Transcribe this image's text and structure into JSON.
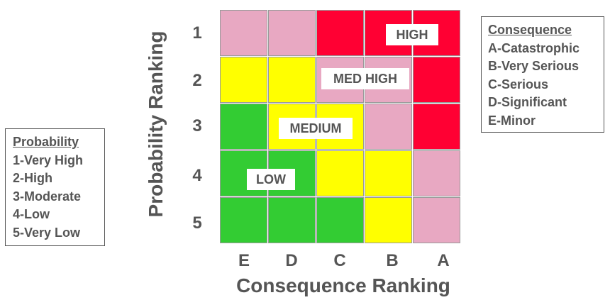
{
  "probability_legend": {
    "title": "Probability",
    "items": [
      "1-Very High",
      "2-High",
      "3-Moderate",
      "4-Low",
      "5-Very Low"
    ]
  },
  "consequence_legend": {
    "title": "Consequence",
    "items": [
      "A-Catastrophic",
      "B-Very Serious",
      "C-Serious",
      "D-Significant",
      "E-Minor"
    ]
  },
  "axes": {
    "y_label": "Probability Ranking",
    "x_label": "Consequence Ranking",
    "rows": [
      "1",
      "2",
      "3",
      "4",
      "5"
    ],
    "cols": [
      "E",
      "D",
      "C",
      "B",
      "A"
    ]
  },
  "colors": {
    "red": "#ff0033",
    "pink": "#e8a8c2",
    "yellow": "#ffff00",
    "green": "#33cc33"
  },
  "grid": [
    [
      "pink",
      "pink",
      "red",
      "red",
      "red"
    ],
    [
      "yellow",
      "yellow",
      "pink",
      "pink",
      "red"
    ],
    [
      "green",
      "yellow",
      "yellow",
      "pink",
      "red"
    ],
    [
      "green",
      "green",
      "yellow",
      "yellow",
      "pink"
    ],
    [
      "green",
      "green",
      "green",
      "yellow",
      "pink"
    ]
  ],
  "zones": {
    "high": "HIGH",
    "med_high": "MED HIGH",
    "medium": "MEDIUM",
    "low": "LOW"
  }
}
